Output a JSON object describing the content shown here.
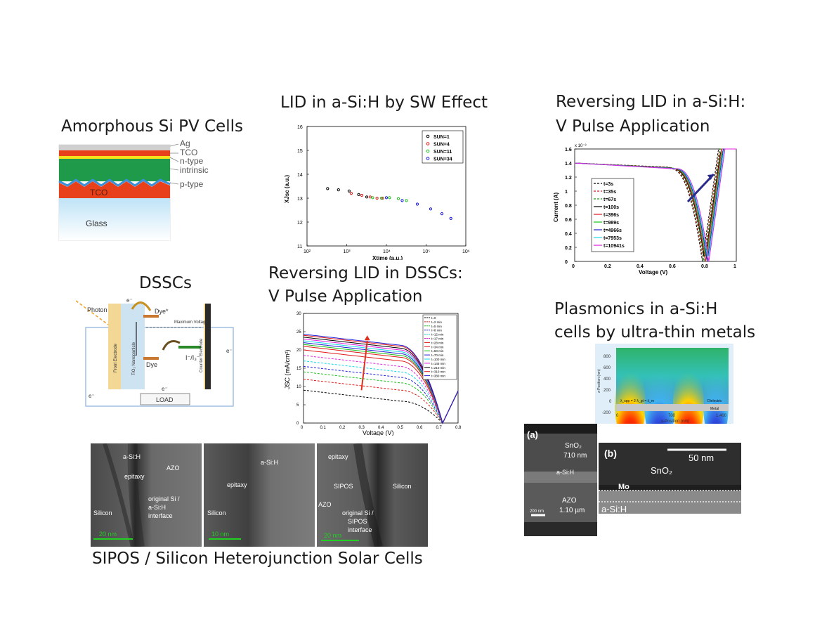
{
  "titles": {
    "amorphous": "Amorphous Si PV Cells",
    "lid_sw": "LID in a-Si:H by SW Effect",
    "rev_lid_asi_1": "Reversing LID in a-Si:H:",
    "rev_lid_asi_2": "V Pulse Application",
    "dsscs": "DSSCs",
    "rev_lid_dssc_1": "Reversing LID in DSSCs:",
    "rev_lid_dssc_2": "V Pulse Application",
    "plasmonics_1": "Plasmonics in a-Si:H",
    "plasmonics_2": "cells by ultra-thin metals",
    "sipos": "SIPOS / Silicon Heterojunction Solar Cells"
  },
  "layer_diagram": {
    "labels": [
      "Ag",
      "TCO",
      "n-type",
      "intrinsic",
      "p-type"
    ],
    "tco_label": "TCO",
    "glass_label": "Glass",
    "colors": {
      "ag": "#c8c8c8",
      "tco": "#e8401a",
      "ntype": "#f4e21a",
      "intrinsic": "#1f9a4a",
      "glass": "#bfe3f7"
    }
  },
  "dssc_diagram": {
    "photon": "Photon",
    "dye_star": "Dye*",
    "dye": "Dye",
    "voltage": "Maximum Voltage",
    "redox": "I⁻/I₃⁻",
    "load": "LOAD",
    "front_electrode": "Front Electrode",
    "tio2": "TiO₂ Nanoparticle",
    "counter_electrode": "Counter Electrode",
    "electron": "e⁻"
  },
  "chart_data": [
    {
      "type": "scatter",
      "xlabel": "Xtime (a.u.)",
      "ylabel": "XJsc (a.u.)",
      "x_scale": "log",
      "xlim": [
        100,
        1000000
      ],
      "ylim": [
        11,
        16
      ],
      "x_ticks": [
        "10²",
        "10³",
        "10⁴",
        "10⁵",
        "10⁶"
      ],
      "y_ticks": [
        11,
        12,
        13,
        14,
        15,
        16
      ],
      "legend": [
        "SUN=1",
        "SUN=4",
        "SUN=11",
        "SUN=34"
      ],
      "legend_position": "top-right",
      "series": [
        {
          "name": "SUN=1",
          "color": "#000000",
          "x": [
            330,
            620,
            1150,
            2000,
            3200
          ],
          "y": [
            13.4,
            13.35,
            13.3,
            13.15,
            13.05
          ]
        },
        {
          "name": "SUN=4",
          "color": "#e01818",
          "x": [
            1300,
            2400,
            3900,
            5800,
            8000
          ],
          "y": [
            13.2,
            13.12,
            13.05,
            13.0,
            13.0
          ]
        },
        {
          "name": "SUN=11",
          "color": "#18c018",
          "x": [
            4500,
            7500,
            12000,
            20000,
            32000
          ],
          "y": [
            13.02,
            13.0,
            13.02,
            12.98,
            12.9
          ]
        },
        {
          "name": "SUN=34",
          "color": "#1818d8",
          "x": [
            10000,
            25000,
            60000,
            130000,
            250000,
            420000
          ],
          "y": [
            13.02,
            12.9,
            12.75,
            12.55,
            12.35,
            12.15
          ]
        }
      ]
    },
    {
      "type": "line",
      "xlabel": "Voltage (V)",
      "ylabel": "Current (A)",
      "y_scale_label": "x 10⁻³",
      "xlim": [
        0,
        1
      ],
      "ylim": [
        0,
        1.6
      ],
      "x_ticks": [
        0,
        0.2,
        0.4,
        0.6,
        0.8,
        1
      ],
      "y_ticks": [
        0,
        0.2,
        0.4,
        0.6,
        0.8,
        1,
        1.2,
        1.4,
        1.6
      ],
      "legend_position": "left",
      "series": [
        {
          "name": "t=3s",
          "color": "#000000",
          "dash": true,
          "voc": 0.79
        },
        {
          "name": "t=35s",
          "color": "#e01818",
          "dash": true,
          "voc": 0.795
        },
        {
          "name": "t=67s",
          "color": "#18a018",
          "dash": true,
          "voc": 0.8
        },
        {
          "name": "t=100s",
          "color": "#000000",
          "dash": false,
          "voc": 0.805
        },
        {
          "name": "t=396s",
          "color": "#e01818",
          "dash": false,
          "voc": 0.81
        },
        {
          "name": "t=989s",
          "color": "#18c018",
          "dash": false,
          "voc": 0.815
        },
        {
          "name": "t=4966s",
          "color": "#2020c8",
          "dash": false,
          "voc": 0.82
        },
        {
          "name": "t=7953s",
          "color": "#20d8e8",
          "dash": false,
          "voc": 0.825
        },
        {
          "name": "t=10941s",
          "color": "#e020e0",
          "dash": false,
          "voc": 0.83
        }
      ],
      "jsc": 1.4
    },
    {
      "type": "line",
      "xlabel": "Voltage (V)",
      "ylabel": "JSC (mA/cm²)",
      "xlim": [
        0,
        0.8
      ],
      "ylim": [
        0,
        30
      ],
      "x_ticks": [
        0,
        0.1,
        0.2,
        0.3,
        0.4,
        0.5,
        0.6,
        0.7,
        0.8
      ],
      "y_ticks": [
        0,
        5,
        10,
        15,
        20,
        25,
        30
      ],
      "legend_position": "top-right",
      "series": [
        {
          "name": "t=0",
          "color": "#000000",
          "dash": true,
          "jsc": 9
        },
        {
          "name": "t=2 min",
          "color": "#e01818",
          "dash": true,
          "jsc": 12
        },
        {
          "name": "t=5 min",
          "color": "#18c018",
          "dash": true,
          "jsc": 14
        },
        {
          "name": "t=8 min",
          "color": "#2020d8",
          "dash": true,
          "jsc": 15.5
        },
        {
          "name": "t=12 min",
          "color": "#18d8e8",
          "dash": true,
          "jsc": 17
        },
        {
          "name": "t=17 min",
          "color": "#e020e0",
          "dash": true,
          "jsc": 18.5
        },
        {
          "name": "t=28 min",
          "color": "#e01818",
          "dash": false,
          "jsc": 20
        },
        {
          "name": "t=34 min",
          "color": "#e01818",
          "dash": false,
          "jsc": 21
        },
        {
          "name": "t=50 min",
          "color": "#18c018",
          "dash": false,
          "jsc": 21.5
        },
        {
          "name": "t=70 min",
          "color": "#2020d8",
          "dash": false,
          "jsc": 22
        },
        {
          "name": "t=100 min",
          "color": "#18d8e8",
          "dash": false,
          "jsc": 22.5
        },
        {
          "name": "t=145 min",
          "color": "#e020e0",
          "dash": false,
          "jsc": 23
        },
        {
          "name": "t=210 min",
          "color": "#000000",
          "dash": false,
          "jsc": 23.5
        },
        {
          "name": "t=310 min",
          "color": "#e01818",
          "dash": false,
          "jsc": 24
        },
        {
          "name": "t=380 min",
          "color": "#2020d8",
          "dash": false,
          "jsc": 24.3
        }
      ],
      "voc": 0.72
    }
  ],
  "field_map": {
    "ylabel": "z-Position (nm)",
    "xlabel": "x-Position (nm)",
    "y_ticks": [
      "800",
      "600",
      "400",
      "200",
      "0",
      "-200"
    ],
    "x_ticks": [
      "0",
      "700",
      "1,400"
    ],
    "dielectric": "Dielectric",
    "metal": "Metal",
    "formula": "λ_spp = 2·λ_gt = λ_m"
  },
  "tem_images": {
    "p1": {
      "asih": "a-Si:H",
      "azo": "AZO",
      "epitaxy": "epitaxy",
      "silicon": "Silicon",
      "interface": "original Si / a-Si:H interface",
      "scale": "20 nm"
    },
    "p2": {
      "asih": "a-Si:H",
      "epitaxy": "epitaxy",
      "silicon": "Silicon",
      "scale": "10 nm"
    },
    "p3": {
      "epitaxy": "epitaxy",
      "sipos": "SIPOS",
      "azo": "AZO",
      "silicon": "Silicon",
      "interface": "original Si / SIPOS interface",
      "scale": "20 nm"
    }
  },
  "sem_images": {
    "a_label": "(a)",
    "b_label": "(b)",
    "sno2_a": "SnO₂",
    "sno2_a_thick": "710 nm",
    "asih_a": "a-Si:H",
    "azo_a": "AZO",
    "azo_a_thick": "1.10 µm",
    "scale_a": "200 nm",
    "scale_b": "50 nm",
    "sno2_b": "SnO₂",
    "mo": "Mo",
    "asih_b": "a-Si:H"
  }
}
